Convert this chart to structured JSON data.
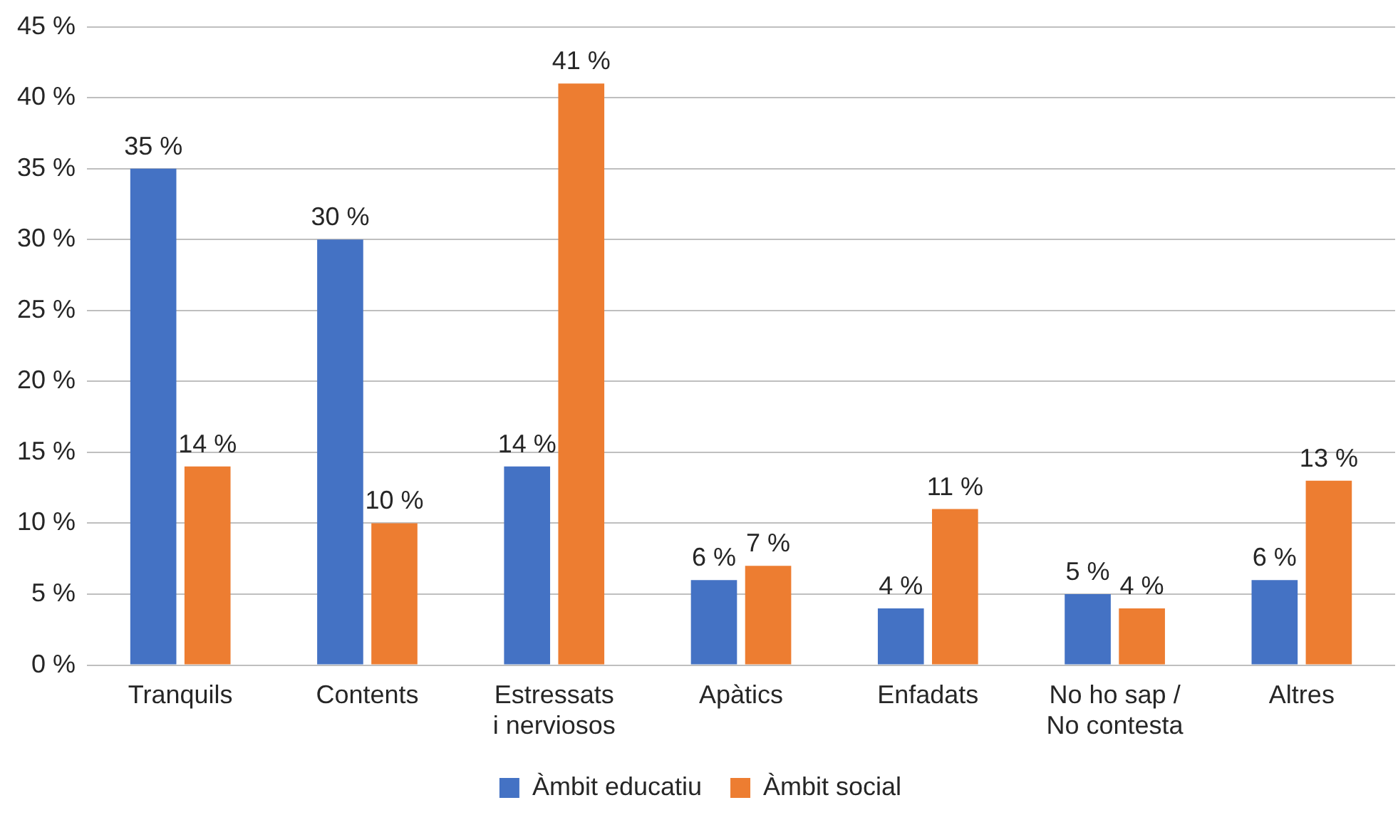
{
  "chart_data": {
    "type": "bar",
    "categories": [
      "Tranquils",
      "Contents",
      "Estressats\ni nerviosos",
      "Apàtics",
      "Enfadats",
      "No ho sap /\nNo contesta",
      "Altres"
    ],
    "series": [
      {
        "name": "Àmbit educatiu",
        "color": "#4472c4",
        "values": [
          35,
          30,
          14,
          6,
          4,
          5,
          6
        ],
        "value_labels": [
          "35 %",
          "30 %",
          "14 %",
          "6 %",
          "4 %",
          "5 %",
          "6 %"
        ]
      },
      {
        "name": "Àmbit social",
        "color": "#ed7d31",
        "values": [
          14,
          10,
          41,
          7,
          11,
          4,
          13
        ],
        "value_labels": [
          "14 %",
          "10 %",
          "41 %",
          "7 %",
          "11 %",
          "4 %",
          "13 %"
        ]
      }
    ],
    "ylim": [
      0,
      45
    ],
    "yticks": [
      {
        "value": 0,
        "label": "0 %"
      },
      {
        "value": 5,
        "label": "5 %"
      },
      {
        "value": 10,
        "label": "10 %"
      },
      {
        "value": 15,
        "label": "15 %"
      },
      {
        "value": 20,
        "label": "20 %"
      },
      {
        "value": 25,
        "label": "25 %"
      },
      {
        "value": 30,
        "label": "30 %"
      },
      {
        "value": 35,
        "label": "35 %"
      },
      {
        "value": 40,
        "label": "40 %"
      },
      {
        "value": 45,
        "label": "45 %"
      }
    ],
    "grid": "y",
    "legend": "bottom"
  }
}
